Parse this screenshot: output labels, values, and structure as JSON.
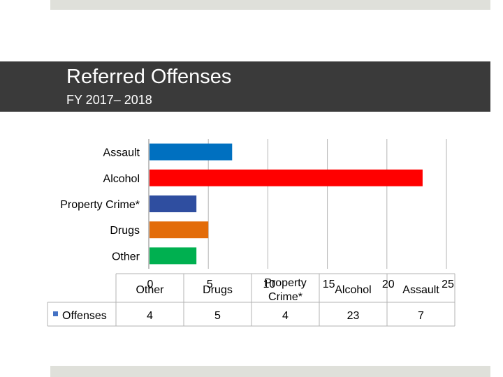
{
  "header": {
    "title": "Referred Offenses",
    "subtitle": "FY 2017– 2018"
  },
  "colors": {
    "banner": "#3a3a3a",
    "band": "#dfe0da",
    "grid": "#b3b3b3",
    "legend_swatch": "#4472c4"
  },
  "chart_data": {
    "type": "bar",
    "orientation": "horizontal",
    "categories": [
      "Other",
      "Drugs",
      "Property Crime*",
      "Alcohol",
      "Assault"
    ],
    "series": [
      {
        "name": "Offenses",
        "values": [
          4,
          5,
          4,
          23,
          7
        ]
      }
    ],
    "bar_colors": [
      "#00b050",
      "#e36c09",
      "#2f4ea0",
      "#ff0000",
      "#0070c0"
    ],
    "xlim": [
      0,
      25
    ],
    "xticks": [
      "0",
      "5",
      "10",
      "15",
      "20",
      "25"
    ],
    "grid": true,
    "legend": "data-table",
    "table": {
      "header_labels": [
        "Other",
        "Drugs",
        "Property Crime*",
        "Alcohol",
        "Assault"
      ],
      "row_label": "Offenses",
      "row_values": [
        "4",
        "5",
        "4",
        "23",
        "7"
      ]
    }
  }
}
